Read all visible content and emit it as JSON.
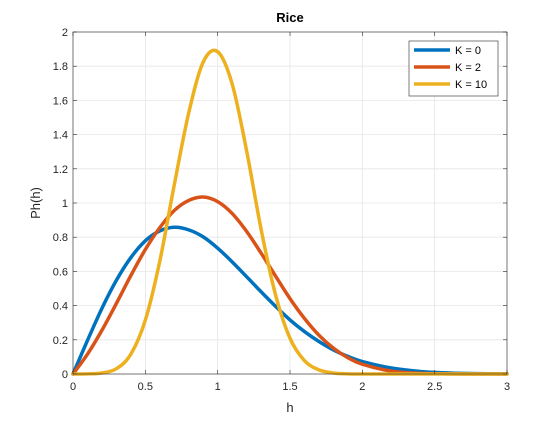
{
  "chart_data": {
    "type": "line",
    "title": "Rice",
    "xlabel": "h",
    "ylabel": "Ph(h)",
    "xlim": [
      0,
      3
    ],
    "ylim": [
      0,
      2
    ],
    "xticks": [
      "0",
      "0.5",
      "1",
      "1.5",
      "2",
      "2.5",
      "3"
    ],
    "yticks": [
      "0",
      "0.2",
      "0.4",
      "0.6",
      "0.8",
      "1",
      "1.2",
      "1.4",
      "1.6",
      "1.8",
      "2"
    ],
    "grid": true,
    "legend_position": "top-right",
    "x": [
      0,
      0.1,
      0.2,
      0.3,
      0.4,
      0.5,
      0.6,
      0.7,
      0.8,
      0.9,
      1.0,
      1.1,
      1.2,
      1.3,
      1.4,
      1.5,
      1.6,
      1.7,
      1.8,
      1.9,
      2.0,
      2.2,
      2.4,
      2.6,
      2.8,
      3.0
    ],
    "series": [
      {
        "name": "K = 0",
        "color": "#0072BD",
        "values": [
          0,
          0.196,
          0.384,
          0.548,
          0.681,
          0.779,
          0.837,
          0.858,
          0.843,
          0.802,
          0.736,
          0.656,
          0.569,
          0.481,
          0.396,
          0.316,
          0.248,
          0.19,
          0.141,
          0.103,
          0.073,
          0.035,
          0.015,
          0.006,
          0.002,
          0.001
        ]
      },
      {
        "name": "K = 2",
        "color": "#D95319",
        "values": [
          0,
          0.116,
          0.256,
          0.413,
          0.576,
          0.728,
          0.856,
          0.956,
          1.015,
          1.035,
          1.008,
          0.939,
          0.834,
          0.707,
          0.573,
          0.441,
          0.325,
          0.227,
          0.151,
          0.095,
          0.057,
          0.017,
          0.004,
          0.001,
          0,
          0
        ]
      },
      {
        "name": "K = 10",
        "color": "#EDB120",
        "values": [
          0,
          0.001,
          0.006,
          0.031,
          0.116,
          0.315,
          0.66,
          1.106,
          1.527,
          1.824,
          1.885,
          1.697,
          1.306,
          0.847,
          0.463,
          0.209,
          0.078,
          0.024,
          0.006,
          0.001,
          0,
          0,
          0,
          0,
          0,
          0
        ]
      }
    ]
  }
}
